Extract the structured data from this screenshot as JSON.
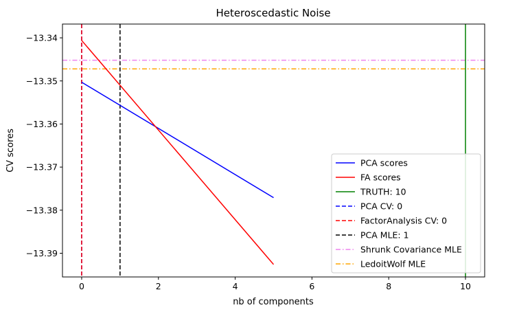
{
  "chart_data": {
    "type": "line",
    "title": "Heteroscedastic Noise",
    "xlabel": "nb of components",
    "ylabel": "CV scores",
    "xlim": [
      -0.5,
      10.5
    ],
    "ylim": [
      -13.3955,
      -13.3368
    ],
    "xticks": [
      0,
      2,
      4,
      6,
      8,
      10
    ],
    "xtick_labels": [
      "0",
      "2",
      "4",
      "6",
      "8",
      "10"
    ],
    "yticks": [
      -13.34,
      -13.35,
      -13.36,
      -13.37,
      -13.38,
      -13.39
    ],
    "ytick_labels": [
      "−13.34",
      "−13.35",
      "−13.36",
      "−13.37",
      "−13.38",
      "−13.39"
    ],
    "grid": false,
    "legend_position": "lower-right",
    "series": [
      {
        "name": "PCA scores",
        "x": [
          0,
          5
        ],
        "y": [
          -13.3503,
          -13.3771
        ],
        "color": "#0000ff",
        "style": "solid"
      },
      {
        "name": "FA scores",
        "x": [
          0,
          5
        ],
        "y": [
          -13.3406,
          -13.3926
        ],
        "color": "#ff0000",
        "style": "solid"
      }
    ],
    "vlines": [
      {
        "name": "TRUTH: 10",
        "x": 10,
        "color": "#008000",
        "style": "solid"
      },
      {
        "name": "PCA CV: 0",
        "x": 0,
        "color": "#0000ff",
        "style": "dashed"
      },
      {
        "name": "FactorAnalysis CV: 0",
        "x": 0,
        "color": "#ff0000",
        "style": "dashed"
      },
      {
        "name": "PCA MLE: 1",
        "x": 1,
        "color": "#000000",
        "style": "dashed"
      }
    ],
    "hlines": [
      {
        "name": "Shrunk Covariance MLE",
        "y": -13.3452,
        "color": "#ee82ee",
        "style": "dashdot"
      },
      {
        "name": "LedoitWolf MLE",
        "y": -13.3472,
        "color": "#ffa500",
        "style": "dashdot"
      }
    ],
    "legend": [
      {
        "label": "PCA scores",
        "color": "#0000ff",
        "style": "solid"
      },
      {
        "label": "FA scores",
        "color": "#ff0000",
        "style": "solid"
      },
      {
        "label": "TRUTH: 10",
        "color": "#008000",
        "style": "solid"
      },
      {
        "label": "PCA CV: 0",
        "color": "#0000ff",
        "style": "dashed"
      },
      {
        "label": "FactorAnalysis CV: 0",
        "color": "#ff0000",
        "style": "dashed"
      },
      {
        "label": "PCA MLE: 1",
        "color": "#000000",
        "style": "dashed"
      },
      {
        "label": "Shrunk Covariance MLE",
        "color": "#ee82ee",
        "style": "dashdot"
      },
      {
        "label": "LedoitWolf MLE",
        "color": "#ffa500",
        "style": "dashdot"
      }
    ]
  }
}
